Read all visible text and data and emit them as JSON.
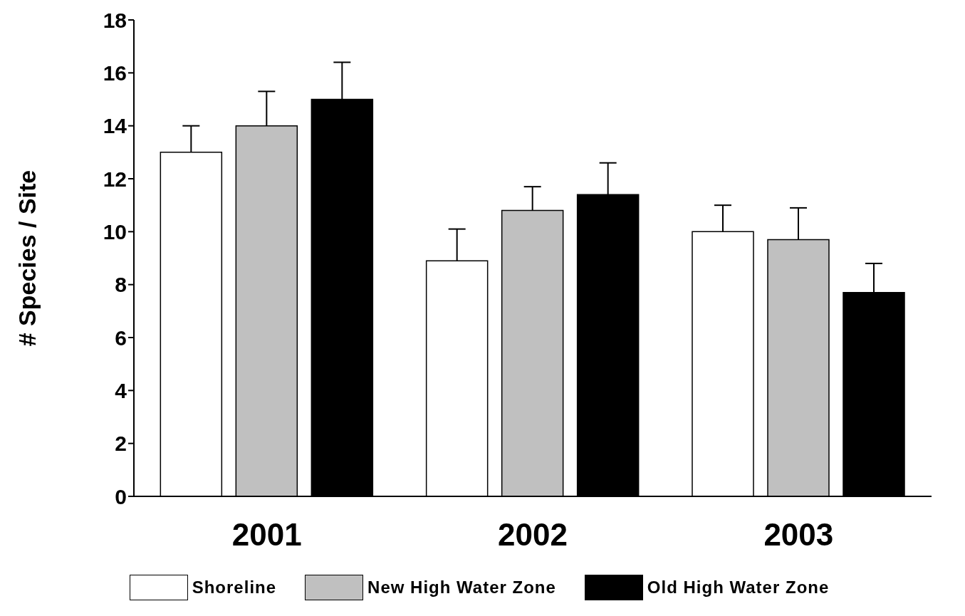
{
  "chart_data": {
    "type": "bar",
    "ylabel": "# Species / Site",
    "categories": [
      "2001",
      "2002",
      "2003"
    ],
    "series": [
      {
        "name": "Shoreline",
        "color": "#ffffff",
        "values": [
          13,
          8.9,
          10
        ],
        "errors": [
          [
            13,
            14
          ],
          [
            8.9,
            10.1
          ],
          [
            10,
            11
          ]
        ]
      },
      {
        "name": "New High Water Zone",
        "color": "#c0c0c0",
        "values": [
          14,
          10.8,
          9.7
        ],
        "errors": [
          [
            14,
            15.3
          ],
          [
            10.8,
            11.7
          ],
          [
            9.7,
            10.9
          ]
        ]
      },
      {
        "name": "Old High Water Zone",
        "color": "#000000",
        "values": [
          15,
          11.4,
          7.7
        ],
        "errors": [
          [
            15,
            16.4
          ],
          [
            11.4,
            12.6
          ],
          [
            7.7,
            8.8
          ]
        ]
      }
    ],
    "ylim": [
      0,
      18
    ],
    "yticks": [
      0,
      2,
      4,
      6,
      8,
      10,
      12,
      14,
      16,
      18
    ],
    "grid": false,
    "legend": "bottom"
  }
}
